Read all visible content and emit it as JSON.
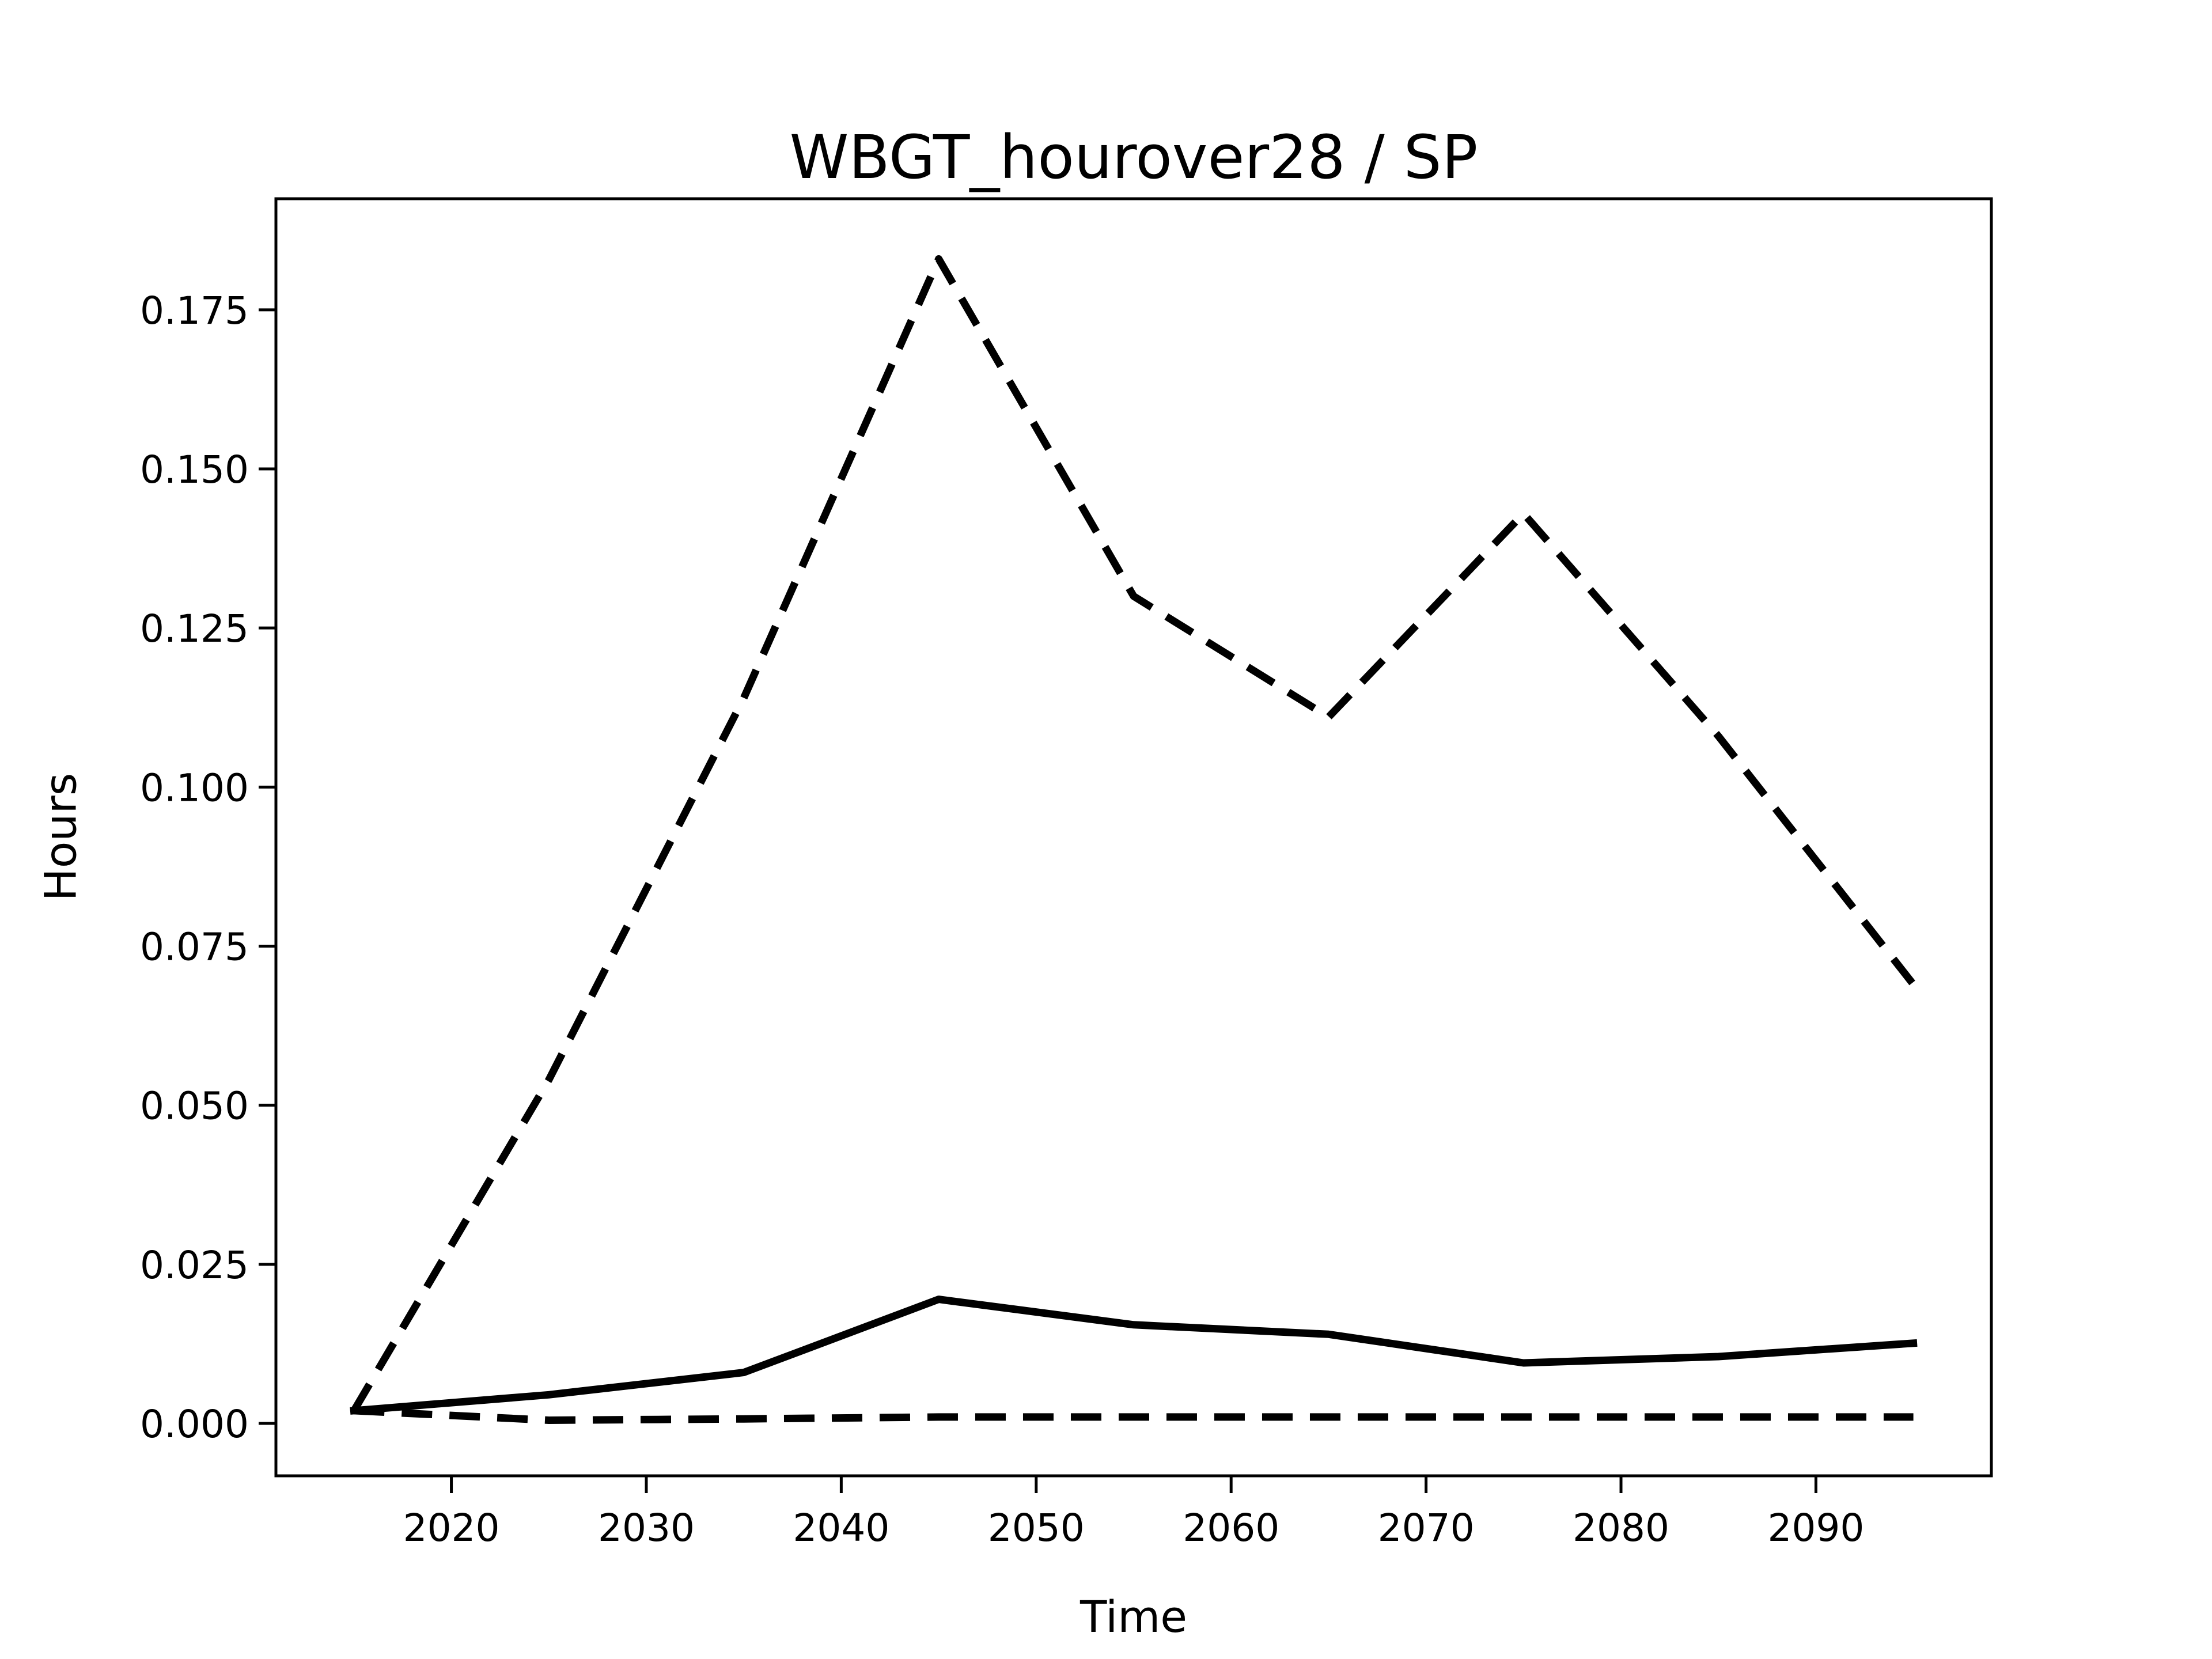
{
  "figure": {
    "title": "WBGT_hourover28 / SP",
    "xlabel": "Time",
    "ylabel": "Hours"
  },
  "chart_data": {
    "type": "line",
    "title": "WBGT_hourover28 / SP",
    "xlabel": "Time",
    "ylabel": "Hours",
    "x": [
      2015,
      2025,
      2035,
      2045,
      2055,
      2065,
      2075,
      2085,
      2095
    ],
    "series": [
      {
        "name": "upper-dashed",
        "style": "dashed",
        "color": "#000000",
        "values": [
          0.002,
          0.054,
          0.114,
          0.183,
          0.13,
          0.111,
          0.143,
          0.108,
          0.069
        ]
      },
      {
        "name": "solid",
        "style": "solid",
        "color": "#000000",
        "values": [
          0.002,
          0.0045,
          0.008,
          0.0195,
          0.0155,
          0.014,
          0.0095,
          0.0105,
          0.0126
        ]
      },
      {
        "name": "lower-dashed",
        "style": "dashed",
        "color": "#000000",
        "values": [
          0.002,
          0.0005,
          0.0007,
          0.001,
          0.001,
          0.001,
          0.001,
          0.001,
          0.001
        ]
      }
    ],
    "xticks": [
      2020,
      2030,
      2040,
      2050,
      2060,
      2070,
      2080,
      2090
    ],
    "yticks": [
      0.0,
      0.025,
      0.05,
      0.075,
      0.1,
      0.125,
      0.15,
      0.175
    ],
    "ytick_labels": [
      "0.000",
      "0.025",
      "0.050",
      "0.075",
      "0.100",
      "0.125",
      "0.150",
      "0.175"
    ],
    "xlim": [
      2011,
      2099
    ],
    "ylim": [
      -0.00824,
      0.19246
    ],
    "grid": false,
    "legend": null,
    "axis_color": "#000000",
    "background": "#ffffff"
  }
}
